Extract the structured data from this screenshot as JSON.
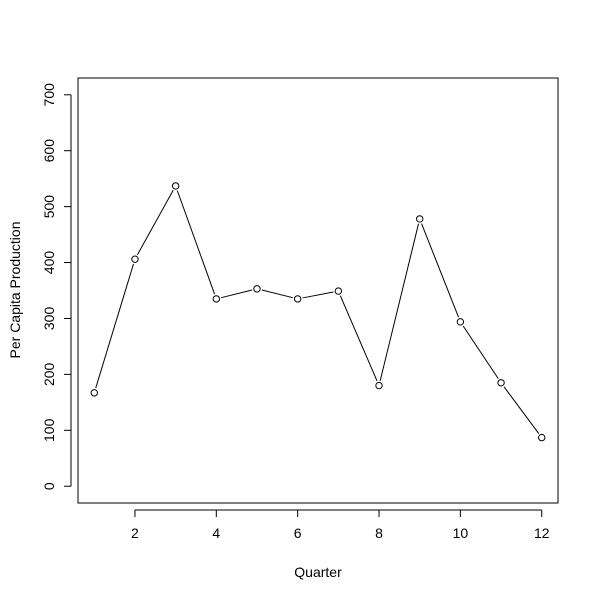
{
  "chart_data": {
    "type": "line",
    "title": "",
    "xlabel": "Quarter",
    "ylabel": "Per Capita Production",
    "x": [
      1,
      2,
      3,
      4,
      5,
      6,
      7,
      8,
      9,
      10,
      11,
      12
    ],
    "series": [
      {
        "values": [
          167,
          406,
          537,
          335,
          353,
          335,
          349,
          180,
          478,
          294,
          185,
          87
        ]
      }
    ],
    "xlim": [
      0.6,
      12.4
    ],
    "ylim": [
      -30,
      730
    ],
    "xticks": [
      2,
      4,
      6,
      8,
      10,
      12
    ],
    "yticks": [
      0,
      100,
      200,
      300,
      400,
      500,
      600,
      700
    ],
    "grid": false,
    "legend": "none",
    "line_color": "#000000",
    "marker": "open-circle"
  }
}
